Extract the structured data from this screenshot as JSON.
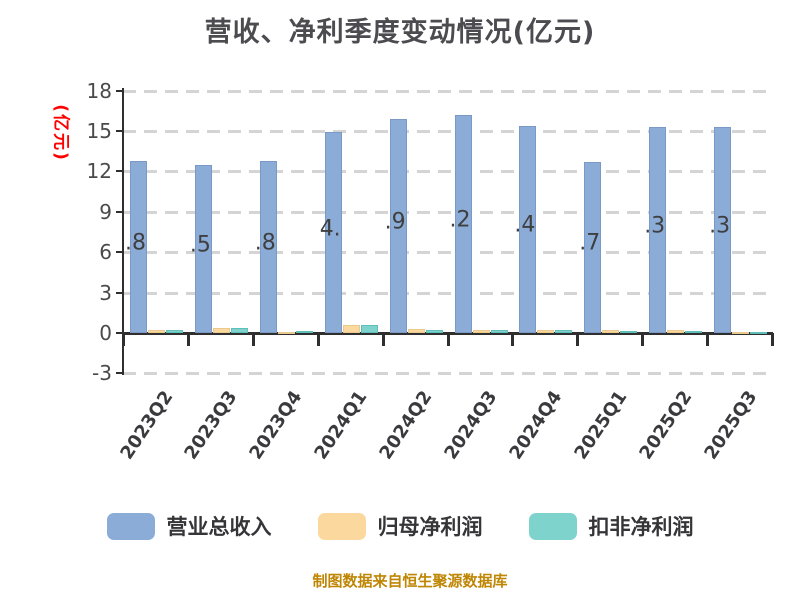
{
  "title": "营收、净利季度变动情况(亿元)",
  "footer": "制图数据来自恒生聚源数据库",
  "y_axis": {
    "label": "(亿元)",
    "label_color": "#FF0000",
    "tick_labels": [
      "18",
      "15",
      "12",
      "9",
      "6",
      "3",
      "0",
      "-3"
    ]
  },
  "legend": {
    "items": [
      {
        "label": "营业总收入",
        "color": "#8CACD8",
        "border": "#7A99C7"
      },
      {
        "label": "归母净利润",
        "color": "#FBD99E",
        "border": "#EAC98E"
      },
      {
        "label": "扣非净利润",
        "color": "#7ED3CD",
        "border": "#5FBFB8"
      }
    ]
  },
  "chart_data": {
    "type": "bar",
    "title": "营收、净利季度变动情况(亿元)",
    "xlabel": "",
    "ylabel": "(亿元)",
    "ylim": [
      -3,
      18
    ],
    "yticks": [
      18,
      15,
      12,
      9,
      6,
      3,
      0,
      -3
    ],
    "grid": "horizontal-dashed",
    "legend_position": "bottom",
    "categories": [
      "2023Q2",
      "2023Q3",
      "2023Q4",
      "2024Q1",
      "2024Q2",
      "2024Q3",
      "2024Q4",
      "2025Q1",
      "2025Q2",
      "2025Q3"
    ],
    "series": [
      {
        "name": "营业总收入",
        "color": "#8CACD8",
        "border": "#7A99C7",
        "values": [
          12.8,
          12.5,
          12.8,
          14.9,
          15.9,
          16.2,
          15.4,
          12.7,
          15.3,
          15.3
        ],
        "visible_value_labels": [
          ".8",
          ".5",
          ".8",
          "4.",
          ".9",
          ".2",
          ".4",
          ".7",
          ".3",
          ".3"
        ]
      },
      {
        "name": "归母净利润",
        "color": "#FBD99E",
        "border": "#EAC98E",
        "values": [
          0.2,
          0.35,
          0.05,
          0.6,
          0.3,
          0.25,
          0.2,
          0.2,
          0.2,
          0.1
        ]
      },
      {
        "name": "扣非净利润",
        "color": "#7ED3CD",
        "border": "#5FBFB8",
        "values": [
          0.2,
          0.35,
          0.15,
          0.6,
          0.2,
          0.2,
          0.2,
          0.15,
          0.15,
          0.1
        ]
      }
    ]
  }
}
